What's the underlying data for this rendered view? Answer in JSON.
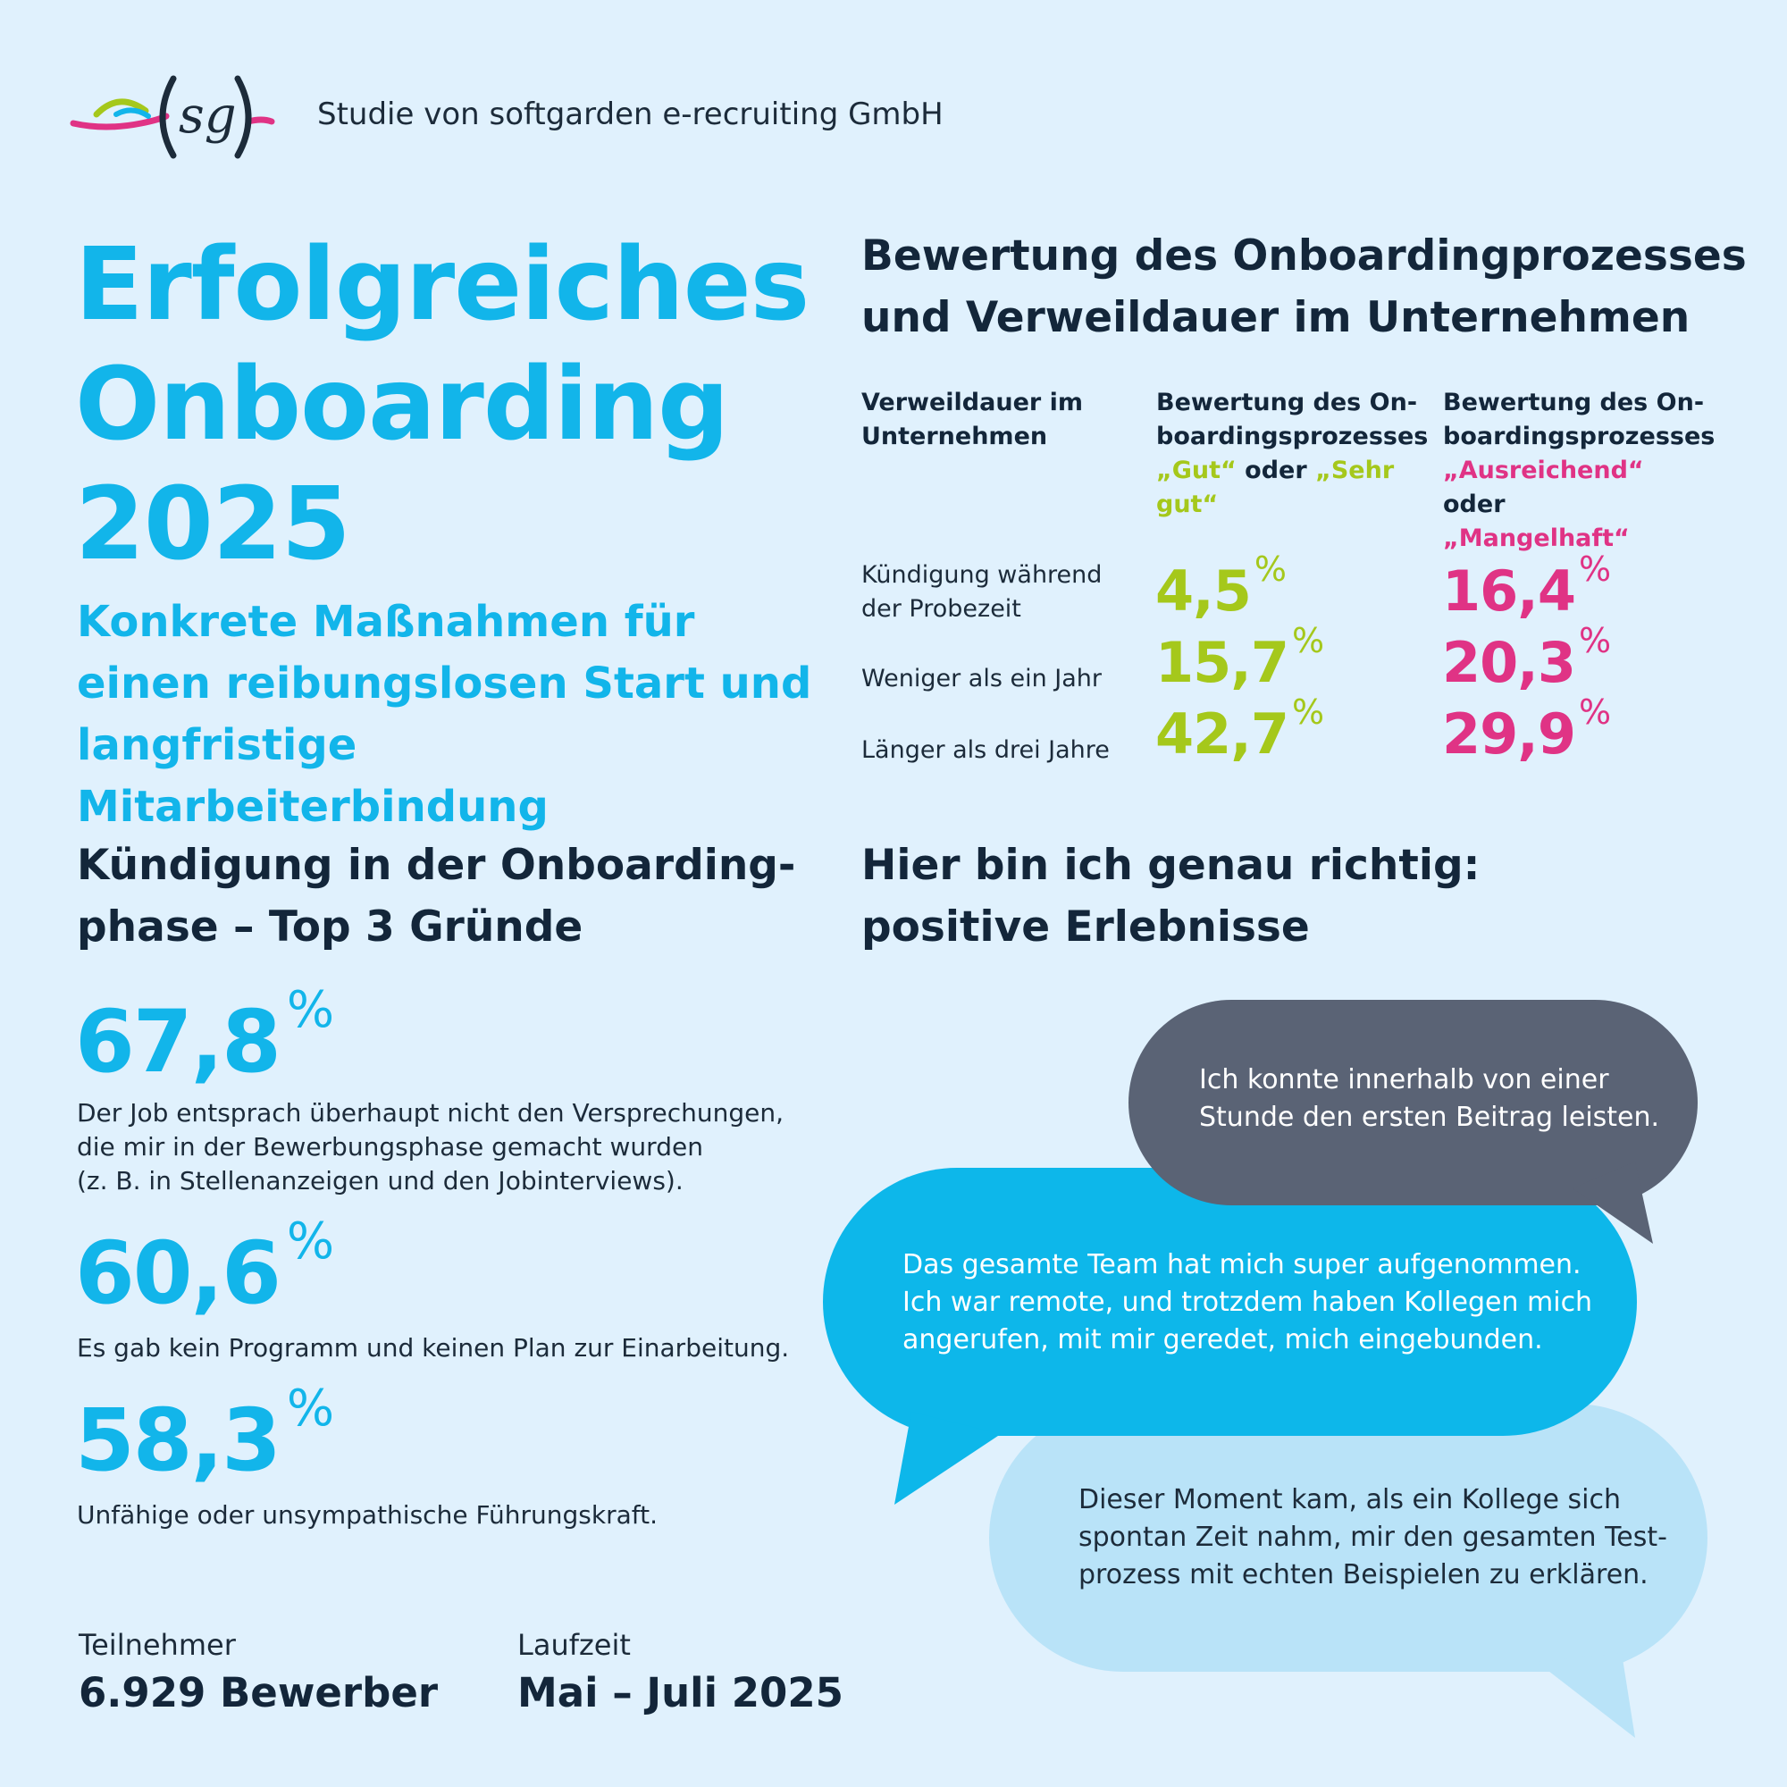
{
  "header": {
    "logo_text": "(sg)",
    "study_label": "Studie von softgarden e-recruiting GmbH"
  },
  "title": {
    "lines": [
      "Erfolgreiches",
      "Onboarding",
      "2025"
    ],
    "subtitle": "Konkrete Maßnahmen für einen reibungslosen Start und langfristige Mitarbeiterbindung"
  },
  "rating": {
    "heading_lines": [
      "Bewertung des Onboardingprozesses",
      "und Verweildauer im Unternehmen"
    ],
    "col_headers": {
      "duration": [
        "Verweildauer im",
        "Unternehmen"
      ],
      "good_prefix": [
        "Bewertung des On-",
        "boardingsprozesses"
      ],
      "good_a": "„Gut“",
      "good_or": " oder ",
      "good_b": "„Sehr gut“",
      "bad_prefix": [
        "Bewertung des On-",
        "boardingsprozesses"
      ],
      "bad_a": "„Ausreichend“",
      "bad_or": " oder",
      "bad_b": "„Mangelhaft“"
    },
    "rows": [
      {
        "label": "Kündigung während der Probezeit",
        "good": "4,5",
        "bad": "16,4"
      },
      {
        "label": "Weniger als ein Jahr",
        "good": "15,7",
        "bad": "20,3"
      },
      {
        "label": "Länger als drei Jahre",
        "good": "42,7",
        "bad": "29,9"
      }
    ],
    "percent_sign": "%",
    "colors": {
      "good": "#a5c81b",
      "bad": "#e03385"
    }
  },
  "reasons": {
    "heading_lines": [
      "Kündigung in der Onboarding-",
      "phase – Top 3 Gründe"
    ],
    "items": [
      {
        "value": "67,8",
        "text_lines": [
          "Der Job entsprach überhaupt nicht den Versprechungen,",
          "die mir in der Bewerbungsphase gemacht wurden",
          "(z. B. in Stellenanzeigen und den Jobinterviews)."
        ]
      },
      {
        "value": "60,6",
        "text_lines": [
          "Es gab kein Programm und keinen Plan zur Einarbeitung."
        ]
      },
      {
        "value": "58,3",
        "text_lines": [
          "Unfähige oder unsympathische Führungskraft."
        ]
      }
    ]
  },
  "positive": {
    "heading_lines": [
      "Hier bin ich genau richtig:",
      "positive Erlebnisse"
    ],
    "quotes": [
      {
        "lines": [
          "Ich konnte innerhalb von einer",
          "Stunde den ersten Beitrag leisten."
        ],
        "color": "#5a6375"
      },
      {
        "lines": [
          "Das gesamte Team hat mich super aufgenommen.",
          "Ich war remote, und trotzdem haben Kollegen mich",
          "angerufen, mit mir geredet, mich eingebunden."
        ],
        "color": "#0db7ea"
      },
      {
        "lines": [
          "Dieser Moment kam, als ein Kollege sich",
          "spontan Zeit nahm, mir den gesamten Test-",
          "prozess mit echten Beispielen zu erklären."
        ],
        "color": "#b9e3f8"
      }
    ]
  },
  "footer": {
    "participants_label": "Teilnehmer",
    "participants_value": "6.929 Bewerber",
    "duration_label": "Laufzeit",
    "duration_value": "Mai – Juli 2025"
  }
}
